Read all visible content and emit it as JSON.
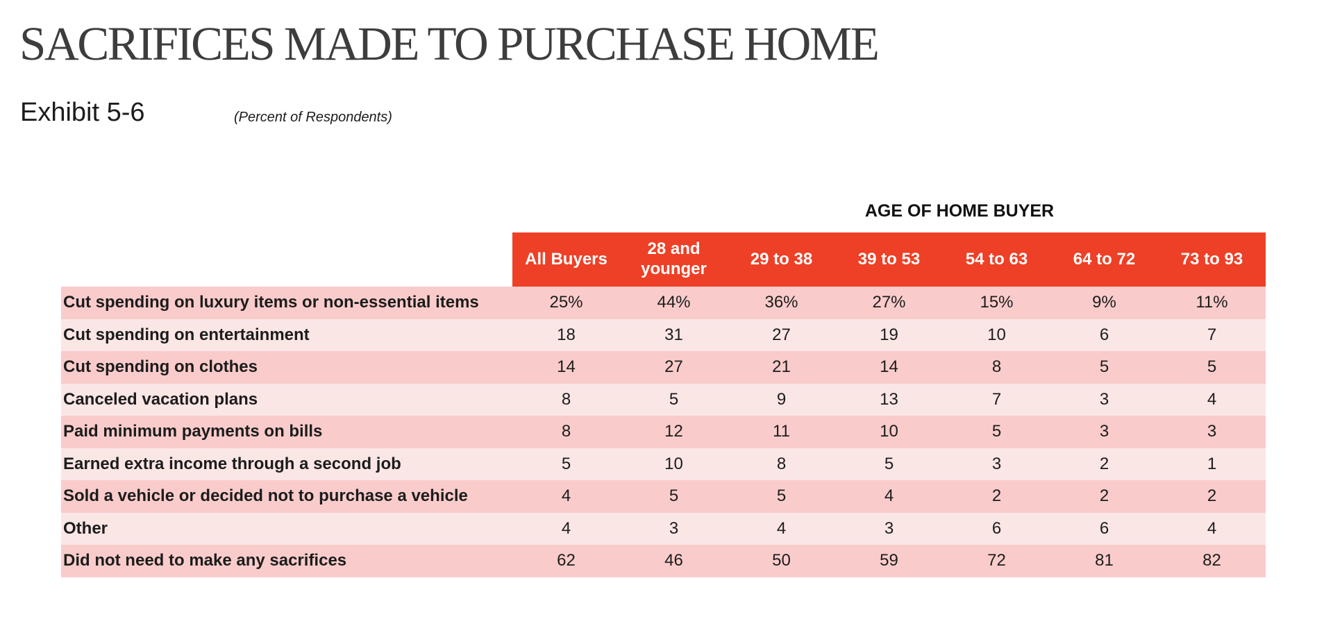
{
  "title": "SACRIFICES MADE TO PURCHASE HOME",
  "exhibit": "Exhibit 5-6",
  "units_note": "(Percent of Respondents)",
  "group_label": "AGE OF HOME BUYER",
  "colors": {
    "header_bg": "#ee4026",
    "header_text": "#ffffff",
    "row_odd_bg": "#f9cccb",
    "row_even_bg": "#fbe6e6",
    "title_text": "#3d3d3d"
  },
  "columns": [
    "All Buyers",
    "28 and younger",
    "29 to 38",
    "39 to 53",
    "54 to 63",
    "64 to 72",
    "73 to 93"
  ],
  "rows": [
    {
      "label": "Cut spending on luxury items or non-essential items",
      "values": [
        "25%",
        "44%",
        "36%",
        "27%",
        "15%",
        "9%",
        "11%"
      ]
    },
    {
      "label": "Cut spending on entertainment",
      "values": [
        "18",
        "31",
        "27",
        "19",
        "10",
        "6",
        "7"
      ]
    },
    {
      "label": "Cut spending on clothes",
      "values": [
        "14",
        "27",
        "21",
        "14",
        "8",
        "5",
        "5"
      ]
    },
    {
      "label": "Canceled vacation plans",
      "values": [
        "8",
        "5",
        "9",
        "13",
        "7",
        "3",
        "4"
      ]
    },
    {
      "label": "Paid minimum payments on bills",
      "values": [
        "8",
        "12",
        "11",
        "10",
        "5",
        "3",
        "3"
      ]
    },
    {
      "label": "Earned extra income through a second job",
      "values": [
        "5",
        "10",
        "8",
        "5",
        "3",
        "2",
        "1"
      ]
    },
    {
      "label": "Sold a vehicle or decided not to purchase a vehicle",
      "values": [
        "4",
        "5",
        "5",
        "4",
        "2",
        "2",
        "2"
      ]
    },
    {
      "label": "Other",
      "values": [
        "4",
        "3",
        "4",
        "3",
        "6",
        "6",
        "4"
      ]
    },
    {
      "label": "Did not need to make any sacrifices",
      "values": [
        "62",
        "46",
        "50",
        "59",
        "72",
        "81",
        "82"
      ]
    }
  ]
}
